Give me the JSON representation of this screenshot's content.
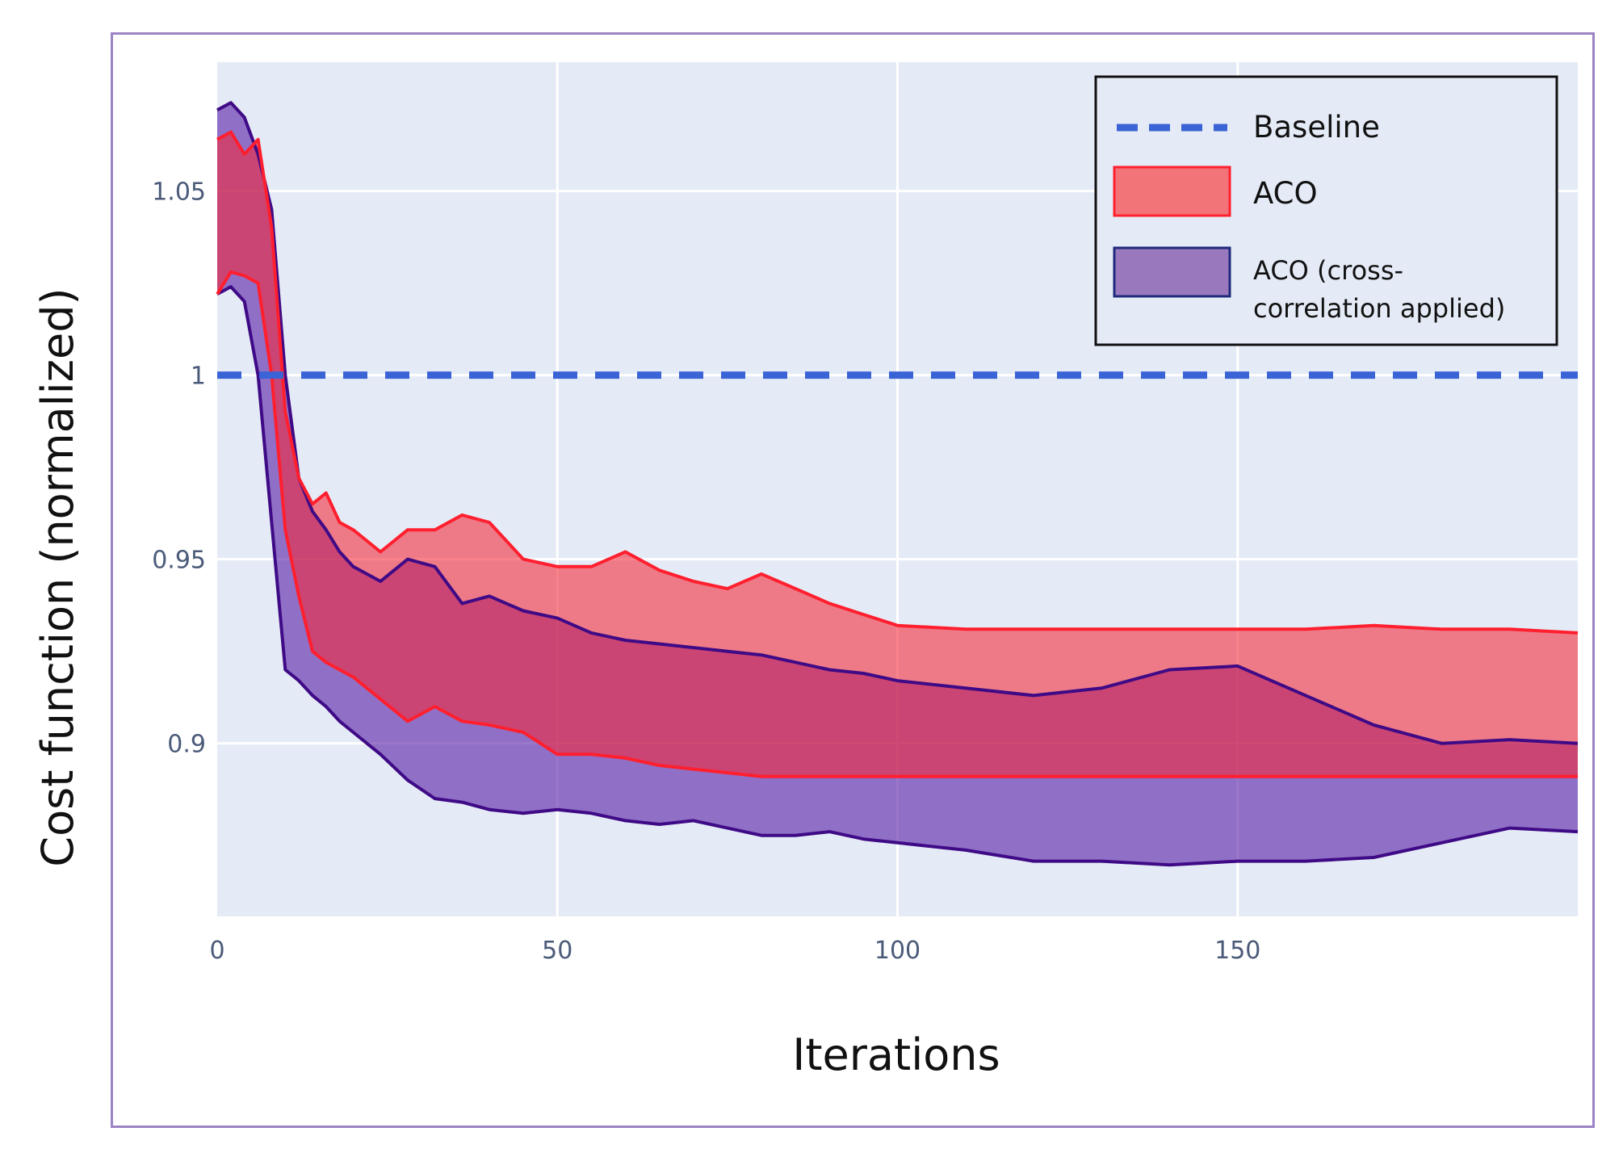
{
  "chart_data": {
    "type": "area",
    "title": "",
    "xlabel": "Iterations",
    "ylabel": "Cost function (normalized)",
    "xlim": [
      0,
      200
    ],
    "ylim": [
      0.853,
      1.085
    ],
    "x_ticks": [
      0,
      50,
      100,
      150
    ],
    "x_tick_labels": [
      "0",
      "50",
      "100",
      "150"
    ],
    "y_ticks": [
      0.9,
      0.95,
      1.0,
      1.05
    ],
    "y_tick_labels": [
      "0.9",
      "0.95",
      "1",
      "1.05"
    ],
    "grid": true,
    "legend": {
      "placement": "top-right",
      "entries": [
        {
          "label": "Baseline",
          "style": "dashed-line"
        },
        {
          "label": "ACO",
          "style": "filled-band"
        },
        {
          "label_line1": "ACO (cross-",
          "label_line2": "correlation applied)",
          "style": "filled-band"
        }
      ]
    },
    "series": [
      {
        "name": "Baseline",
        "kind": "line",
        "color": "#3a63d6",
        "x": [
          0,
          200
        ],
        "y": [
          1.0,
          1.0
        ]
      },
      {
        "name": "ACO",
        "kind": "band",
        "line_color": "#ff1f2e",
        "fill_color": "rgba(245, 40, 55, 0.58)",
        "x": [
          0,
          2,
          4,
          6,
          8,
          10,
          12,
          14,
          16,
          18,
          20,
          24,
          28,
          32,
          36,
          40,
          45,
          50,
          55,
          60,
          65,
          70,
          75,
          80,
          85,
          90,
          95,
          100,
          110,
          120,
          130,
          140,
          150,
          160,
          170,
          180,
          190,
          200
        ],
        "upper": [
          1.064,
          1.066,
          1.06,
          1.064,
          1.04,
          0.99,
          0.972,
          0.965,
          0.968,
          0.96,
          0.958,
          0.952,
          0.958,
          0.958,
          0.962,
          0.96,
          0.95,
          0.948,
          0.948,
          0.952,
          0.947,
          0.944,
          0.942,
          0.946,
          0.942,
          0.938,
          0.935,
          0.932,
          0.931,
          0.931,
          0.931,
          0.931,
          0.931,
          0.931,
          0.932,
          0.931,
          0.931,
          0.93
        ],
        "lower": [
          1.022,
          1.028,
          1.027,
          1.025,
          1.0,
          0.958,
          0.94,
          0.925,
          0.922,
          0.92,
          0.918,
          0.912,
          0.906,
          0.91,
          0.906,
          0.905,
          0.903,
          0.897,
          0.897,
          0.896,
          0.894,
          0.893,
          0.892,
          0.891,
          0.891,
          0.891,
          0.891,
          0.891,
          0.891,
          0.891,
          0.891,
          0.891,
          0.891,
          0.891,
          0.891,
          0.891,
          0.891,
          0.891
        ]
      },
      {
        "name": "ACO (cross-correlation applied)",
        "kind": "band",
        "line_color": "#3f0a86",
        "fill_color": "rgba(92, 35, 168, 0.62)",
        "x": [
          0,
          2,
          4,
          6,
          8,
          10,
          12,
          14,
          16,
          18,
          20,
          24,
          28,
          32,
          36,
          40,
          45,
          50,
          55,
          60,
          65,
          70,
          75,
          80,
          85,
          90,
          95,
          100,
          110,
          120,
          130,
          140,
          150,
          160,
          170,
          180,
          190,
          200
        ],
        "upper": [
          1.072,
          1.074,
          1.07,
          1.06,
          1.045,
          1.0,
          0.972,
          0.963,
          0.958,
          0.952,
          0.948,
          0.944,
          0.95,
          0.948,
          0.938,
          0.94,
          0.936,
          0.934,
          0.93,
          0.928,
          0.927,
          0.926,
          0.925,
          0.924,
          0.922,
          0.92,
          0.919,
          0.917,
          0.915,
          0.913,
          0.915,
          0.92,
          0.921,
          0.913,
          0.905,
          0.9,
          0.901,
          0.9
        ],
        "lower": [
          1.022,
          1.024,
          1.02,
          1.0,
          0.96,
          0.92,
          0.917,
          0.913,
          0.91,
          0.906,
          0.903,
          0.897,
          0.89,
          0.885,
          0.884,
          0.882,
          0.881,
          0.882,
          0.881,
          0.879,
          0.878,
          0.879,
          0.877,
          0.875,
          0.875,
          0.876,
          0.874,
          0.873,
          0.871,
          0.868,
          0.868,
          0.867,
          0.868,
          0.868,
          0.869,
          0.873,
          0.877,
          0.876
        ]
      }
    ]
  }
}
